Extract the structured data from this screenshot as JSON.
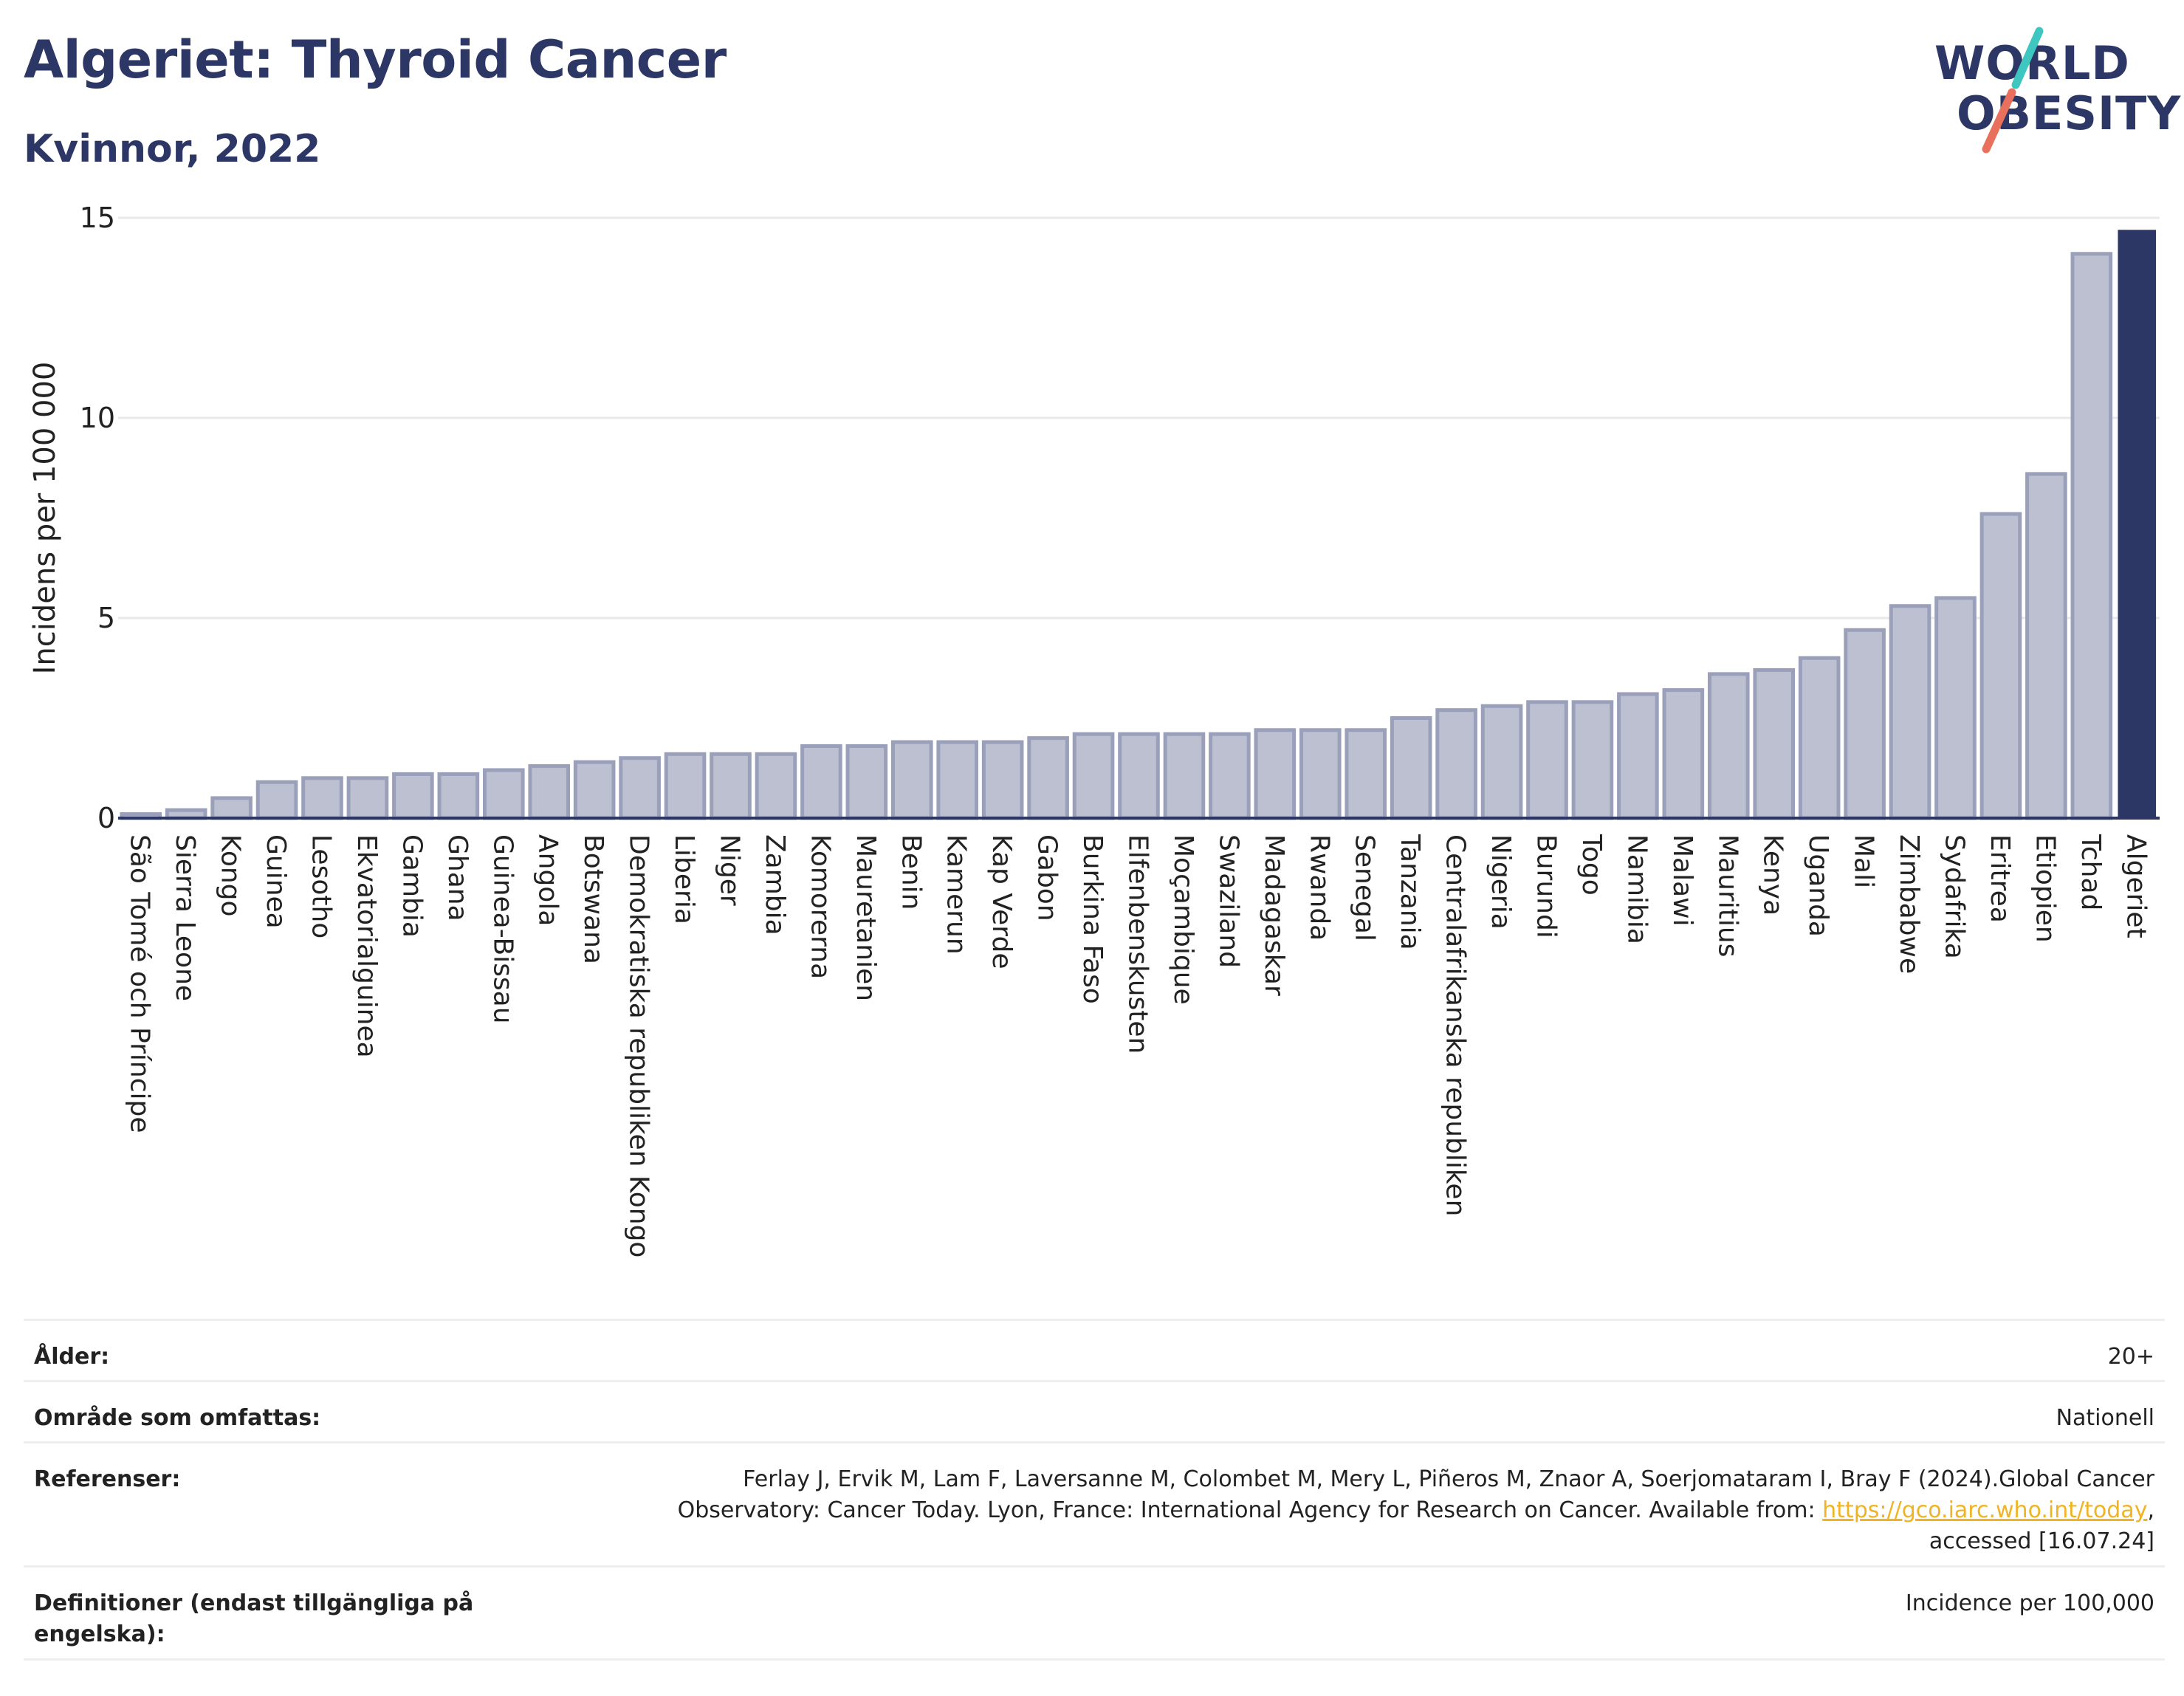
{
  "header": {
    "title": "Algeriet: Thyroid Cancer",
    "subtitle": "Kvinnor, 2022"
  },
  "logo": {
    "line1": "WORLD",
    "line2": "OBESITY",
    "colors": {
      "text": "#2c3766",
      "slash_top": "#3ec6c0",
      "slash_bottom": "#e8705c"
    }
  },
  "colors": {
    "bar_fill": "#bcc0d0",
    "bar_stroke": "#9aa0ba",
    "highlight": "#2c3766",
    "grid": "#e9e9e9",
    "axis": "#2c3766"
  },
  "chart_data": {
    "type": "bar",
    "title": "",
    "xlabel": "",
    "ylabel": "Incidens per 100 000",
    "ylim": [
      0,
      15
    ],
    "yticks": [
      0,
      5,
      10,
      15
    ],
    "grid": true,
    "highlight_category": "Algeriet",
    "categories": [
      "São Tomé och Príncipe",
      "Sierra Leone",
      "Kongo",
      "Guinea",
      "Lesotho",
      "Ekvatorialguinea",
      "Gambia",
      "Ghana",
      "Guinea-Bissau",
      "Angola",
      "Botswana",
      "Demokratiska republiken Kongo",
      "Liberia",
      "Niger",
      "Zambia",
      "Komorerna",
      "Mauretanien",
      "Benin",
      "Kamerun",
      "Kap Verde",
      "Gabon",
      "Burkina Faso",
      "Elfenbenskusten",
      "Moçambique",
      "Swaziland",
      "Madagaskar",
      "Rwanda",
      "Senegal",
      "Tanzania",
      "Centralafrikanska republiken",
      "Nigeria",
      "Burundi",
      "Togo",
      "Namibia",
      "Malawi",
      "Mauritius",
      "Kenya",
      "Uganda",
      "Mali",
      "Zimbabwe",
      "Sydafrika",
      "Eritrea",
      "Etiopien",
      "Tchad",
      "Algeriet"
    ],
    "values": [
      0.1,
      0.2,
      0.5,
      0.9,
      1.0,
      1.0,
      1.1,
      1.1,
      1.2,
      1.3,
      1.4,
      1.5,
      1.6,
      1.6,
      1.6,
      1.8,
      1.8,
      1.9,
      1.9,
      1.9,
      2.0,
      2.1,
      2.1,
      2.1,
      2.1,
      2.2,
      2.2,
      2.2,
      2.5,
      2.7,
      2.8,
      2.9,
      2.9,
      3.1,
      3.2,
      3.6,
      3.7,
      4.0,
      4.7,
      5.3,
      5.5,
      7.6,
      8.6,
      14.1,
      14.7
    ]
  },
  "meta": {
    "age_label": "Ålder:",
    "age_value": "20+",
    "area_label": "Område som omfattas:",
    "area_value": "Nationell",
    "ref_label": "Referenser:",
    "ref_text_1": "Ferlay J, Ervik M, Lam F, Laversanne M, Colombet M, Mery L, Piñeros M, Znaor A, Soerjomataram I, Bray F (2024).Global Cancer",
    "ref_text_2": "Observatory: Cancer Today. Lyon, France: International Agency for Research on Cancer. Available from: ",
    "ref_link": "https://gco.iarc.who.int/today",
    "ref_text_3": ",",
    "ref_text_4": "accessed [16.07.24]",
    "def_label": "Definitioner (endast tillgängliga på engelska):",
    "def_value": "Incidence per 100,000"
  }
}
